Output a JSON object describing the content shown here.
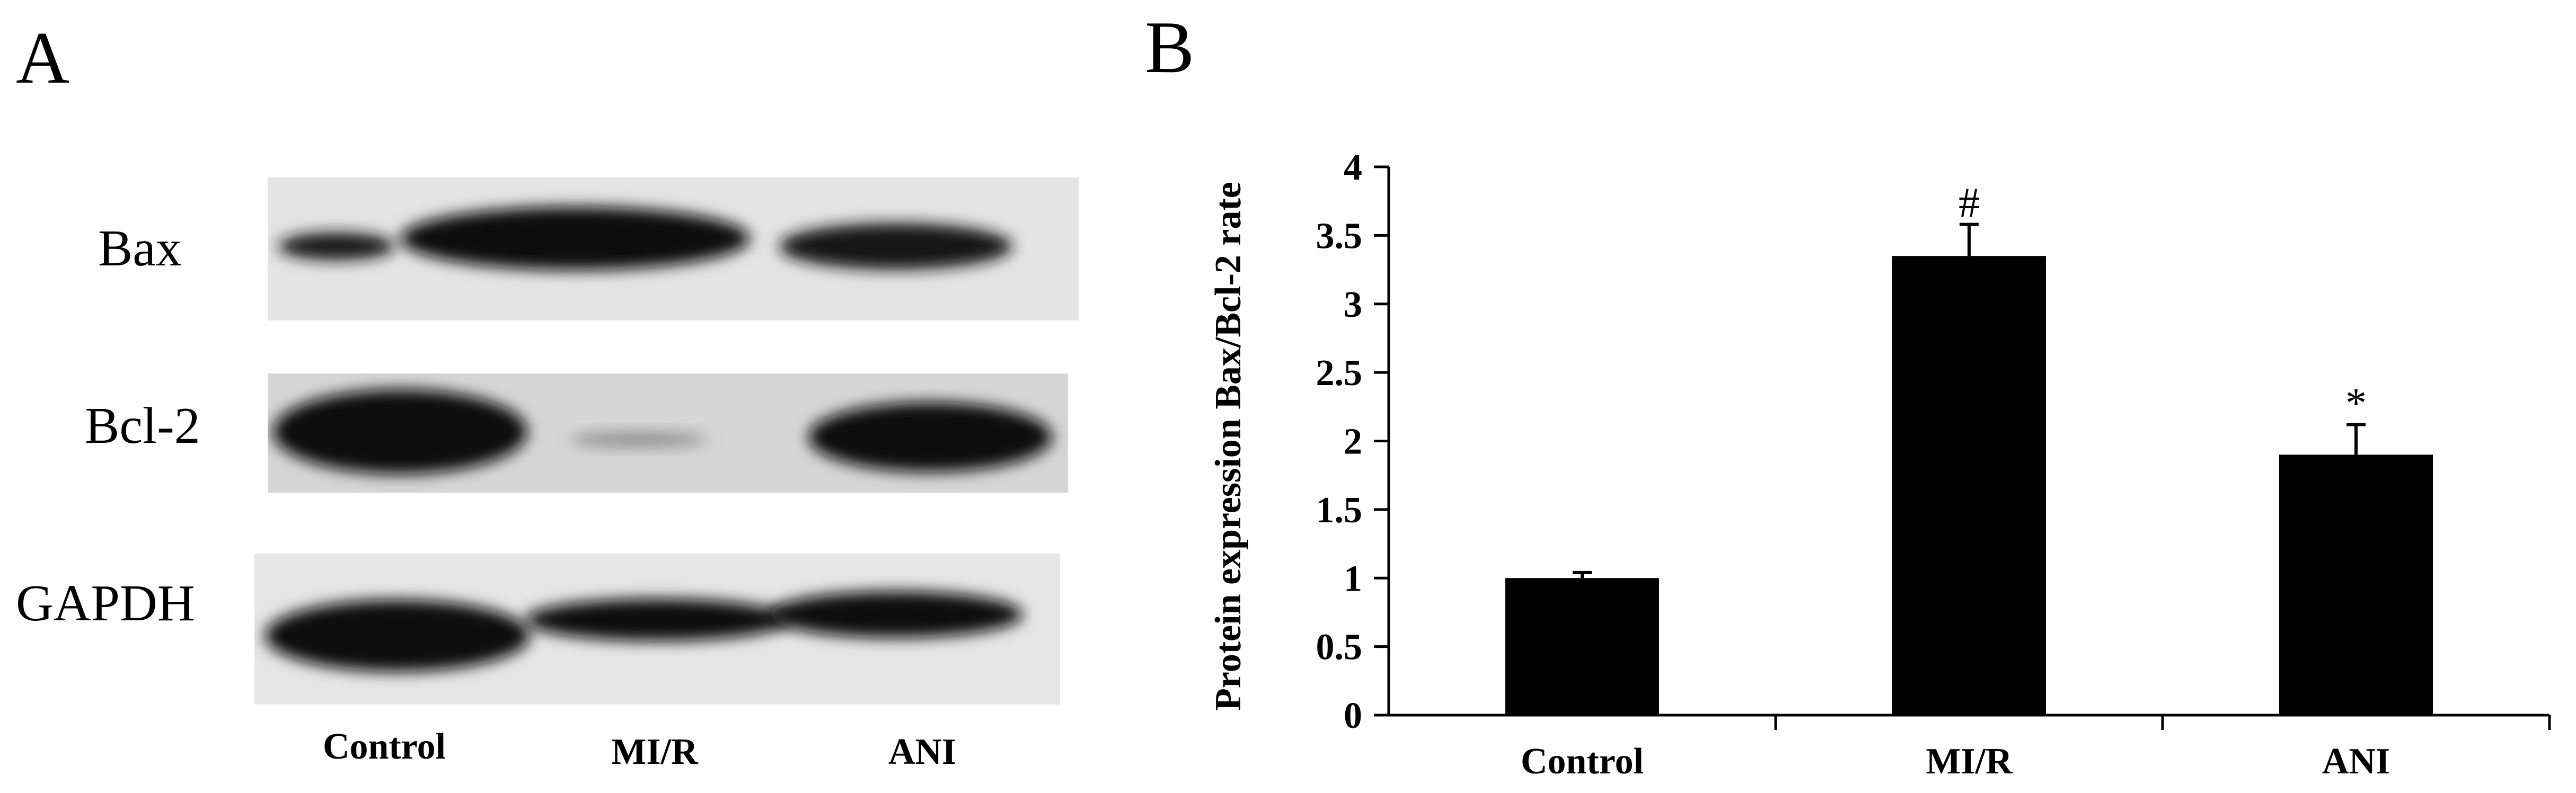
{
  "panels": {
    "a_label": "A",
    "b_label": "B"
  },
  "blot": {
    "rows": [
      {
        "label": "Bax",
        "intensities": [
          0.45,
          1.0,
          0.8
        ]
      },
      {
        "label": "Bcl-2",
        "intensities": [
          1.0,
          0.12,
          0.85
        ]
      },
      {
        "label": "GAPDH",
        "intensities": [
          1.0,
          0.85,
          0.85
        ]
      }
    ],
    "lanes": [
      "Control",
      "MI/R",
      "ANI"
    ]
  },
  "chart_data": {
    "type": "bar",
    "categories": [
      "Control",
      "MI/R",
      "ANI"
    ],
    "values": [
      1.0,
      3.35,
      1.9
    ],
    "errors": [
      0.04,
      0.23,
      0.22
    ],
    "annotations": [
      "",
      "#",
      "*"
    ],
    "title": "",
    "xlabel": "",
    "ylabel": "Protein expression Bax/Bcl-2 rate",
    "ylim": [
      0,
      4
    ],
    "yticks": [
      "0",
      "0.5",
      "1",
      "1.5",
      "2",
      "2.5",
      "3",
      "3.5",
      "4"
    ],
    "bar_color": "#000000",
    "grid": false
  }
}
